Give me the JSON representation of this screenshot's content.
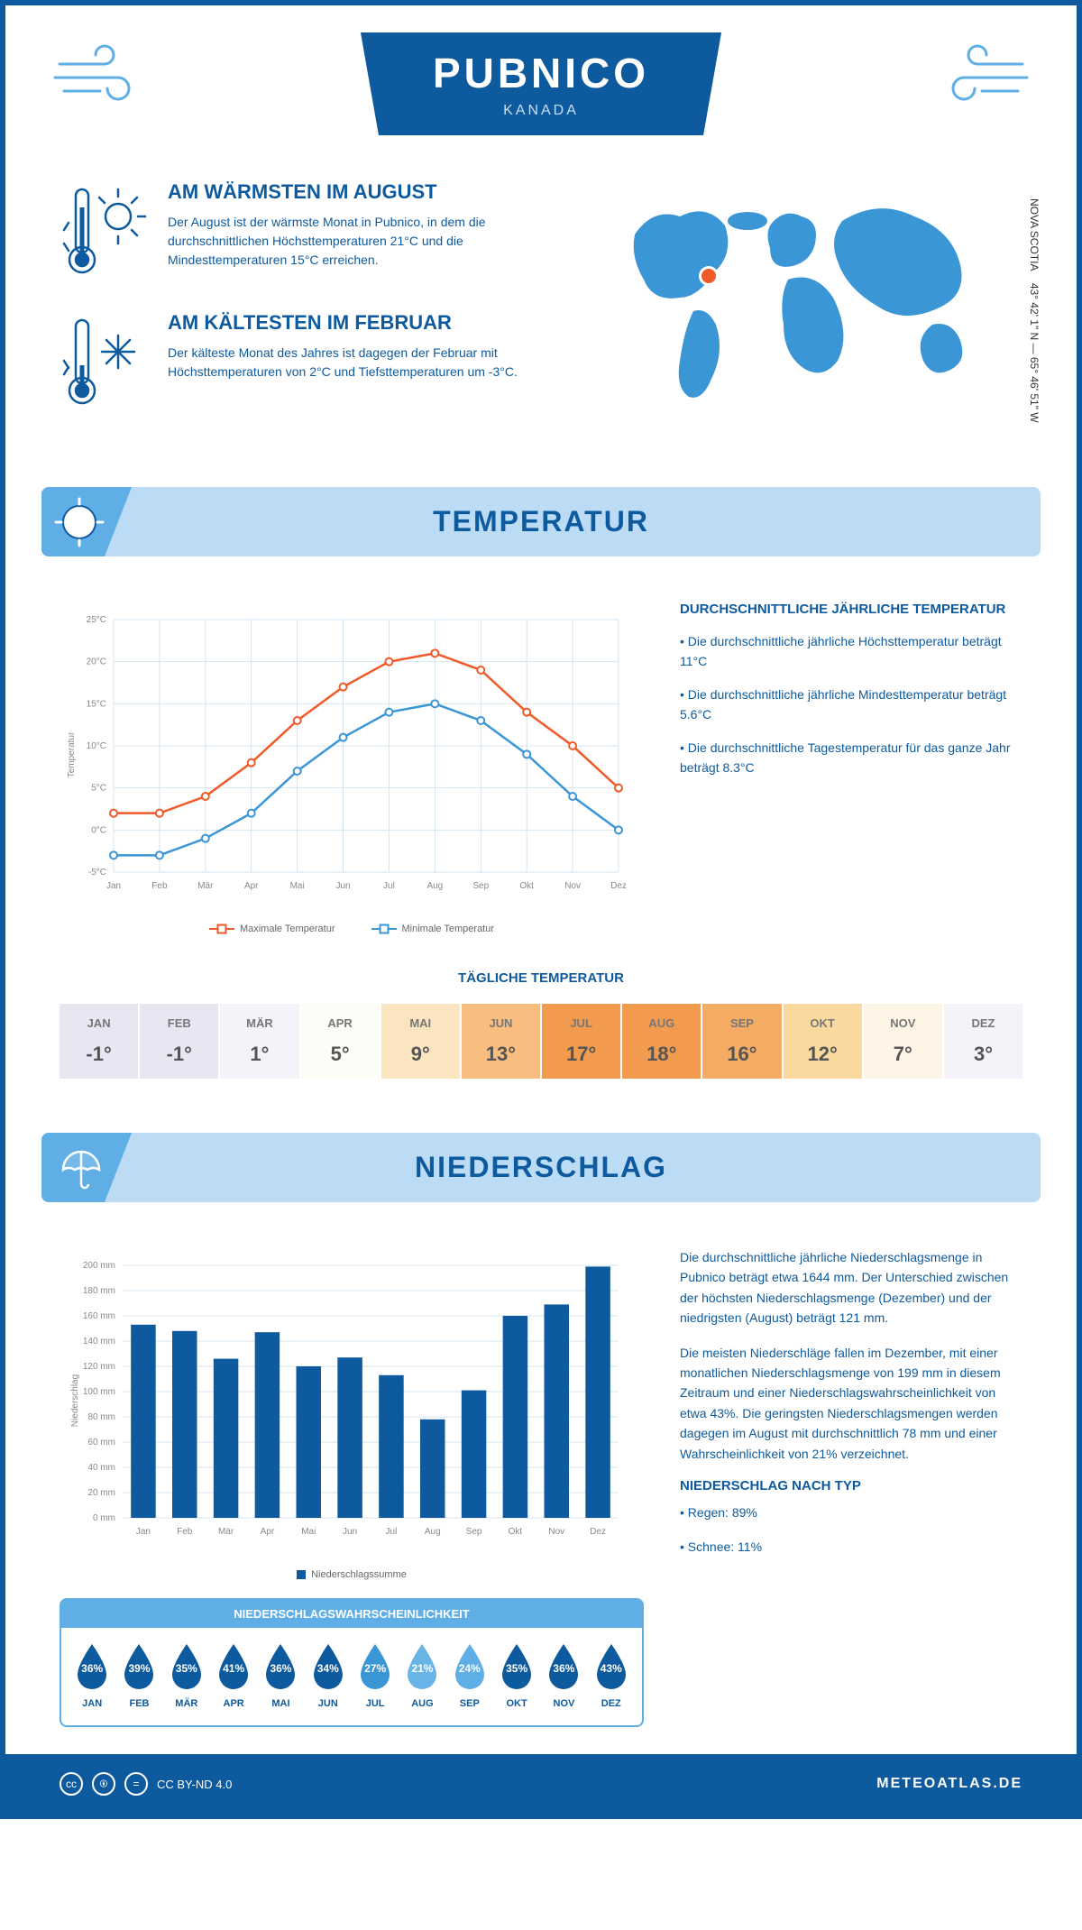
{
  "header": {
    "title": "PUBNICO",
    "country": "KANADA"
  },
  "coords": {
    "region": "NOVA SCOTIA",
    "lat": "43° 42' 1\" N",
    "lon": "65° 46' 51\" W"
  },
  "warmest": {
    "title": "AM WÄRMSTEN IM AUGUST",
    "text": "Der August ist der wärmste Monat in Pubnico, in dem die durchschnittlichen Höchsttemperaturen 21°C und die Mindesttemperaturen 15°C erreichen."
  },
  "coldest": {
    "title": "AM KÄLTESTEN IM FEBRUAR",
    "text": "Der kälteste Monat des Jahres ist dagegen der Februar mit Höchsttemperaturen von 2°C und Tiefsttemperaturen um -3°C."
  },
  "sections": {
    "temp": "TEMPERATUR",
    "precip": "NIEDERSCHLAG"
  },
  "temp_chart": {
    "type": "line",
    "months": [
      "Jan",
      "Feb",
      "Mär",
      "Apr",
      "Mai",
      "Jun",
      "Jul",
      "Aug",
      "Sep",
      "Okt",
      "Nov",
      "Dez"
    ],
    "max_vals": [
      2,
      2,
      4,
      8,
      13,
      17,
      20,
      21,
      19,
      14,
      10,
      5
    ],
    "min_vals": [
      -3,
      -3,
      -1,
      2,
      7,
      11,
      14,
      15,
      13,
      9,
      4,
      0
    ],
    "max_color": "#f05a28",
    "min_color": "#3b96d6",
    "grid_color": "#d5e4f0",
    "ylim": [
      -5,
      25
    ],
    "ytick_step": 5,
    "ylabel": "Temperatur",
    "legend_max": "Maximale Temperatur",
    "legend_min": "Minimale Temperatur"
  },
  "temp_info": {
    "title": "DURCHSCHNITTLICHE JÄHRLICHE TEMPERATUR",
    "b1": "• Die durchschnittliche jährliche Höchsttemperatur beträgt 11°C",
    "b2": "• Die durchschnittliche jährliche Mindesttemperatur beträgt 5.6°C",
    "b3": "• Die durchschnittliche Tagestemperatur für das ganze Jahr beträgt 8.3°C"
  },
  "daily_temp": {
    "title": "TÄGLICHE TEMPERATUR",
    "months": [
      "JAN",
      "FEB",
      "MÄR",
      "APR",
      "MAI",
      "JUN",
      "JUL",
      "AUG",
      "SEP",
      "OKT",
      "NOV",
      "DEZ"
    ],
    "values": [
      "-1°",
      "-1°",
      "1°",
      "5°",
      "9°",
      "13°",
      "17°",
      "18°",
      "16°",
      "12°",
      "7°",
      "3°"
    ],
    "colors": [
      "#e9e5f3",
      "#e9e5f3",
      "#f5f2fa",
      "#fefcf7",
      "#fbe4c0",
      "#f9be7f",
      "#f29b4f",
      "#f29b4f",
      "#f4ab63",
      "#fad99f",
      "#fdf4e5",
      "#f5f2fa"
    ]
  },
  "precip_chart": {
    "type": "bar",
    "months": [
      "Jan",
      "Feb",
      "Mär",
      "Apr",
      "Mai",
      "Jun",
      "Jul",
      "Aug",
      "Sep",
      "Okt",
      "Nov",
      "Dez"
    ],
    "values": [
      153,
      148,
      126,
      147,
      120,
      127,
      113,
      78,
      101,
      160,
      169,
      199
    ],
    "bar_color": "#0e5a9e",
    "grid_color": "#d5e4f0",
    "ylim": [
      0,
      200
    ],
    "ytick_step": 20,
    "ylabel": "Niederschlag",
    "legend": "Niederschlagssumme"
  },
  "precip_text": {
    "p1": "Die durchschnittliche jährliche Niederschlagsmenge in Pubnico beträgt etwa 1644 mm. Der Unterschied zwischen der höchsten Niederschlagsmenge (Dezember) und der niedrigsten (August) beträgt 121 mm.",
    "p2": "Die meisten Niederschläge fallen im Dezember, mit einer monatlichen Niederschlagsmenge von 199 mm in diesem Zeitraum und einer Niederschlagswahrscheinlichkeit von etwa 43%. Die geringsten Niederschlagsmengen werden dagegen im August mit durchschnittlich 78 mm und einer Wahrscheinlichkeit von 21% verzeichnet.",
    "type_title": "NIEDERSCHLAG NACH TYP",
    "rain": "• Regen: 89%",
    "snow": "• Schnee: 11%"
  },
  "prob": {
    "title": "NIEDERSCHLAGSWAHRSCHEINLICHKEIT",
    "months": [
      "JAN",
      "FEB",
      "MÄR",
      "APR",
      "MAI",
      "JUN",
      "JUL",
      "AUG",
      "SEP",
      "OKT",
      "NOV",
      "DEZ"
    ],
    "values": [
      "36%",
      "39%",
      "35%",
      "41%",
      "36%",
      "34%",
      "27%",
      "21%",
      "24%",
      "35%",
      "36%",
      "43%"
    ],
    "colors": [
      "#0e5a9e",
      "#0e5a9e",
      "#0e5a9e",
      "#0e5a9e",
      "#0e5a9e",
      "#0e5a9e",
      "#3b96d6",
      "#6ab5e8",
      "#5faee5",
      "#0e5a9e",
      "#0e5a9e",
      "#0e5a9e"
    ]
  },
  "footer": {
    "license": "CC BY-ND 4.0",
    "site": "METEOATLAS.DE"
  },
  "colors": {
    "primary": "#0e5a9e",
    "light": "#bcdcf5",
    "mid": "#5faee5"
  }
}
